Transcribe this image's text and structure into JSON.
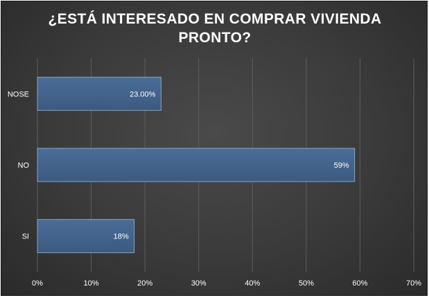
{
  "chart_data": {
    "type": "bar",
    "orientation": "horizontal",
    "title": "¿ESTÁ  INTERESADO EN COMPRAR VIVIENDA\nPRONTO?",
    "xlabel": "",
    "ylabel": "",
    "categories": [
      "NOSE",
      "NO",
      "SI"
    ],
    "values": [
      0.23,
      0.59,
      0.18
    ],
    "data_labels": [
      "23.00%",
      "59%",
      "18%"
    ],
    "xlim": [
      0,
      0.7
    ],
    "x_ticks": [
      "0%",
      "10%",
      "20%",
      "30%",
      "40%",
      "50%",
      "60%",
      "70%"
    ],
    "grid": "vertical",
    "legend": "none",
    "colors": {
      "bar_fill": "#3c5a80",
      "bar_fill_light": "#4a6d96",
      "bar_stroke": "#8aa3c4",
      "background": "#3d3d3d",
      "gridline": "#5e5e5e",
      "text": "#ffffff"
    }
  }
}
